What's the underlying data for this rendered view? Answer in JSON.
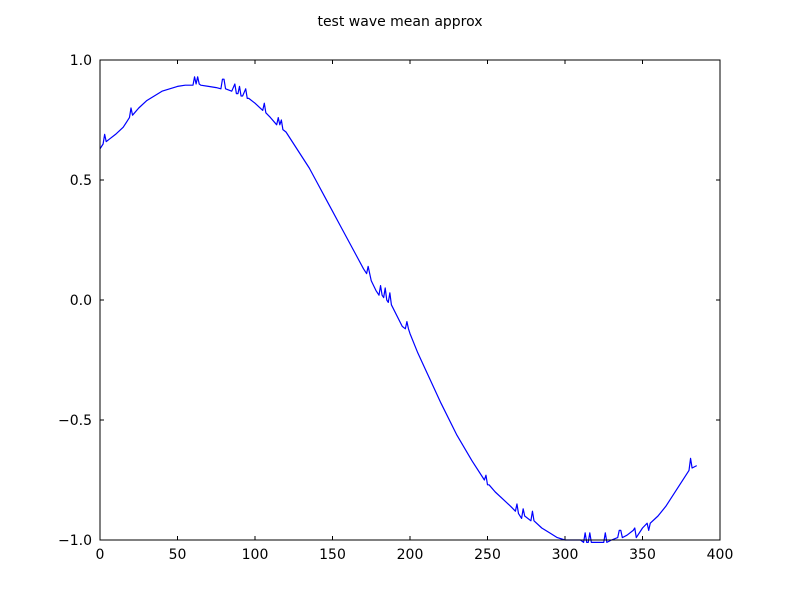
{
  "chart_data": {
    "type": "line",
    "title": "test wave mean approx",
    "xlabel": "",
    "ylabel": "",
    "xlim": [
      0,
      400
    ],
    "ylim": [
      -1.0,
      1.0
    ],
    "xticks": [
      0,
      50,
      100,
      150,
      200,
      250,
      300,
      350,
      400
    ],
    "xtick_labels": [
      "0",
      "50",
      "100",
      "150",
      "200",
      "250",
      "300",
      "350",
      "400"
    ],
    "yticks": [
      -1.0,
      -0.5,
      0.0,
      0.5,
      1.0
    ],
    "ytick_labels": [
      "−1.0",
      "−0.5",
      "0.0",
      "0.5",
      "1.0"
    ],
    "grid": false,
    "legend": "none",
    "series": [
      {
        "color": "#0000ff",
        "x": [
          0,
          2,
          3,
          4,
          6,
          10,
          15,
          19,
          20,
          21,
          25,
          30,
          35,
          40,
          45,
          50,
          55,
          60,
          61,
          62,
          63,
          64,
          65,
          70,
          75,
          78,
          79,
          80,
          81,
          85,
          87,
          88,
          89,
          90,
          91,
          92,
          94,
          95,
          96,
          100,
          105,
          106,
          107,
          110,
          114,
          115,
          116,
          117,
          118,
          120,
          125,
          130,
          135,
          140,
          145,
          150,
          155,
          160,
          165,
          170,
          172,
          173,
          174,
          175,
          178,
          180,
          181,
          182,
          183,
          184,
          185,
          186,
          187,
          188,
          195,
          197,
          198,
          199,
          200,
          205,
          210,
          220,
          230,
          240,
          248,
          249,
          250,
          251,
          255,
          260,
          265,
          268,
          269,
          270,
          272,
          273,
          274,
          278,
          279,
          280,
          285,
          290,
          295,
          300,
          305,
          310,
          312,
          313,
          314,
          315,
          316,
          317,
          320,
          325,
          326,
          327,
          330,
          334,
          335,
          336,
          337,
          340,
          344,
          345,
          346,
          350,
          353,
          354,
          355,
          360,
          365,
          370,
          375,
          380,
          381,
          382,
          385
        ],
        "y": [
          0.63,
          0.65,
          0.69,
          0.66,
          0.67,
          0.69,
          0.72,
          0.76,
          0.8,
          0.77,
          0.8,
          0.83,
          0.85,
          0.87,
          0.88,
          0.89,
          0.895,
          0.895,
          0.93,
          0.9,
          0.93,
          0.9,
          0.895,
          0.89,
          0.885,
          0.88,
          0.92,
          0.92,
          0.88,
          0.87,
          0.9,
          0.86,
          0.86,
          0.89,
          0.85,
          0.85,
          0.88,
          0.84,
          0.84,
          0.82,
          0.79,
          0.82,
          0.78,
          0.76,
          0.73,
          0.76,
          0.73,
          0.75,
          0.71,
          0.7,
          0.65,
          0.6,
          0.55,
          0.49,
          0.43,
          0.37,
          0.31,
          0.25,
          0.19,
          0.13,
          0.11,
          0.14,
          0.11,
          0.08,
          0.04,
          0.02,
          0.06,
          0.02,
          0.01,
          0.05,
          0.0,
          -0.01,
          0.03,
          -0.02,
          -0.11,
          -0.12,
          -0.09,
          -0.12,
          -0.14,
          -0.22,
          -0.29,
          -0.43,
          -0.56,
          -0.67,
          -0.75,
          -0.73,
          -0.77,
          -0.77,
          -0.8,
          -0.83,
          -0.86,
          -0.88,
          -0.85,
          -0.89,
          -0.91,
          -0.87,
          -0.9,
          -0.92,
          -0.88,
          -0.92,
          -0.95,
          -0.97,
          -0.99,
          -1.0,
          -1.0,
          -1.0,
          -1.01,
          -0.97,
          -1.01,
          -1.01,
          -0.97,
          -1.01,
          -1.01,
          -1.01,
          -0.97,
          -1.01,
          -1.0,
          -0.99,
          -0.96,
          -0.96,
          -0.99,
          -0.98,
          -0.96,
          -0.95,
          -0.99,
          -0.95,
          -0.93,
          -0.96,
          -0.93,
          -0.9,
          -0.86,
          -0.81,
          -0.76,
          -0.71,
          -0.66,
          -0.7,
          -0.69
        ]
      }
    ]
  }
}
